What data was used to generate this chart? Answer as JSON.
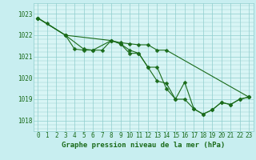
{
  "title": "Graphe pression niveau de la mer (hPa)",
  "background_color": "#c8eef0",
  "plot_background": "#d8f5f5",
  "line_color": "#1a6b1a",
  "grid_color": "#90cece",
  "xlim": [
    -0.5,
    23.5
  ],
  "ylim": [
    1017.5,
    1023.5
  ],
  "yticks": [
    1018,
    1019,
    1020,
    1021,
    1022,
    1023
  ],
  "xticks": [
    0,
    1,
    2,
    3,
    4,
    5,
    6,
    7,
    8,
    9,
    10,
    11,
    12,
    13,
    14,
    15,
    16,
    17,
    18,
    19,
    20,
    21,
    22,
    23
  ],
  "series": [
    {
      "x": [
        0,
        1,
        3,
        4,
        5,
        6,
        7,
        8,
        9,
        10,
        11,
        12,
        13,
        14,
        15,
        16,
        17,
        18,
        19,
        20,
        21,
        22,
        23
      ],
      "y": [
        1022.8,
        1022.55,
        1022.0,
        1021.35,
        1021.3,
        1021.3,
        1021.3,
        1021.75,
        1021.6,
        1021.3,
        1021.15,
        1020.5,
        1019.85,
        1019.75,
        1019.0,
        1019.8,
        1018.55,
        1018.3,
        1018.5,
        1018.85,
        1018.75,
        1019.0,
        1019.1
      ]
    },
    {
      "x": [
        0,
        3,
        5,
        6,
        8,
        9,
        10,
        11,
        12,
        13,
        14,
        15,
        16,
        17,
        18,
        19,
        20,
        21,
        22,
        23
      ],
      "y": [
        1022.8,
        1022.0,
        1021.35,
        1021.3,
        1021.75,
        1021.6,
        1021.15,
        1021.15,
        1020.5,
        1020.5,
        1019.5,
        1019.0,
        1019.0,
        1018.55,
        1018.3,
        1018.5,
        1018.85,
        1018.75,
        1019.0,
        1019.1
      ]
    },
    {
      "x": [
        0,
        3,
        8,
        9,
        10,
        11,
        12,
        13,
        14,
        23
      ],
      "y": [
        1022.8,
        1022.0,
        1021.75,
        1021.65,
        1021.6,
        1021.55,
        1021.55,
        1021.3,
        1021.3,
        1019.1
      ]
    }
  ],
  "marker_size": 2.5,
  "line_width": 0.8,
  "tick_fontsize": 5.5,
  "title_fontsize": 6.5,
  "title_color": "#1a6b1a",
  "tick_color": "#1a6b1a"
}
